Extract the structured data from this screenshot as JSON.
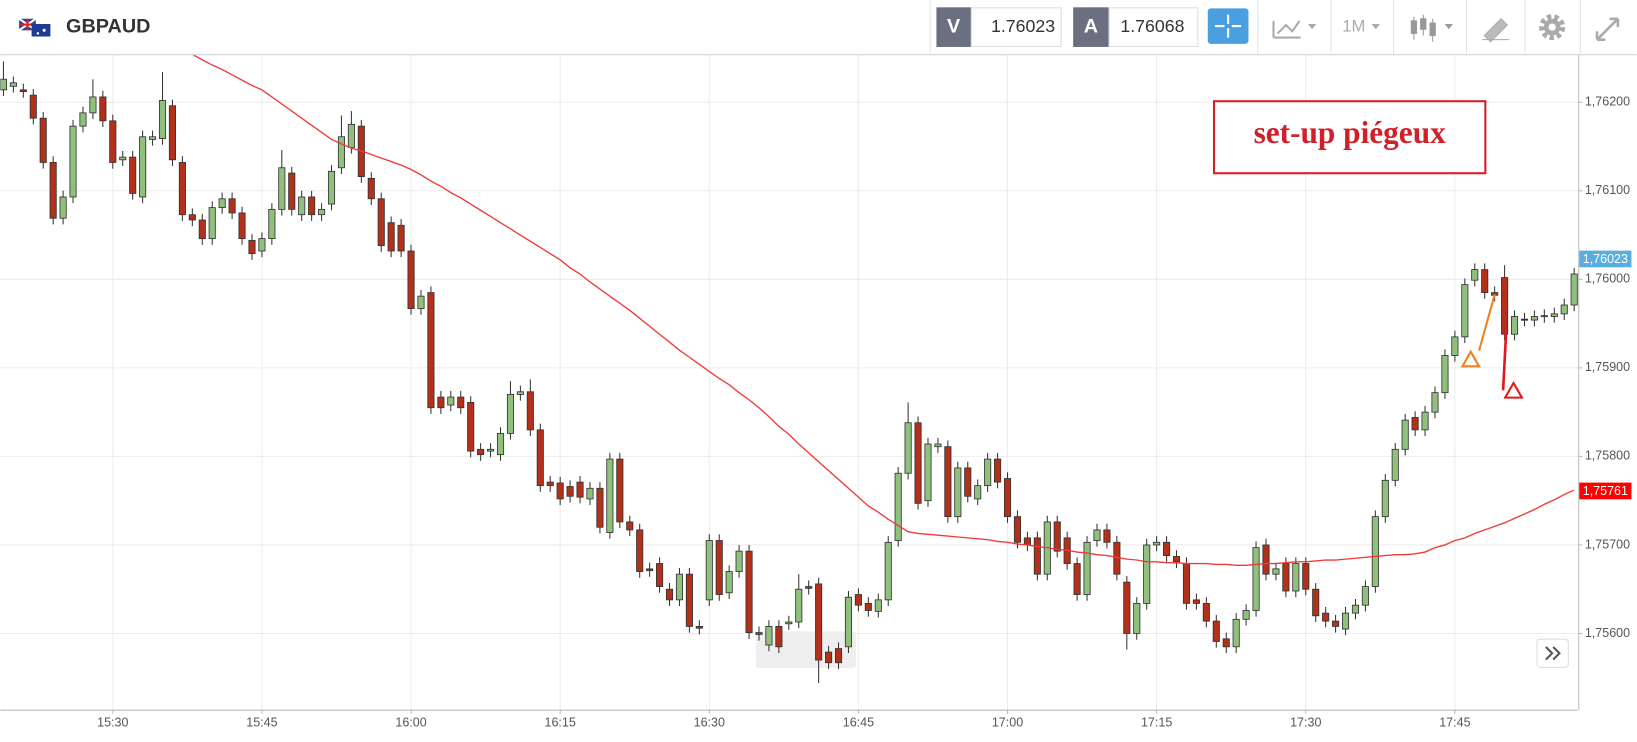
{
  "header": {
    "symbol": "GBPAUD",
    "bid_label": "V",
    "bid": 1.76023,
    "ask_label": "A",
    "ask": 1.76068,
    "timeframe": "1M"
  },
  "chart_data": {
    "type": "candlestick",
    "annotation": "set-up piégeux",
    "categories": [
      null,
      null,
      null,
      null,
      null,
      null,
      null,
      null,
      null,
      null,
      null,
      "15:30",
      null,
      null,
      null,
      null,
      null,
      null,
      null,
      null,
      null,
      null,
      null,
      null,
      null,
      null,
      "15:45",
      null,
      null,
      null,
      null,
      null,
      null,
      null,
      null,
      null,
      null,
      null,
      null,
      null,
      null,
      "16:00",
      null,
      null,
      null,
      null,
      null,
      null,
      null,
      null,
      null,
      null,
      null,
      null,
      null,
      null,
      "16:15",
      null,
      null,
      null,
      null,
      null,
      null,
      null,
      null,
      null,
      null,
      null,
      null,
      null,
      null,
      "16:30",
      null,
      null,
      null,
      null,
      null,
      null,
      null,
      null,
      null,
      null,
      null,
      null,
      null,
      null,
      "16:45",
      null,
      null,
      null,
      null,
      null,
      null,
      null,
      null,
      null,
      null,
      null,
      null,
      null,
      null,
      "17:00",
      null,
      null,
      null,
      null,
      null,
      null,
      null,
      null,
      null,
      null,
      null,
      null,
      null,
      null,
      "17:15",
      null,
      null,
      null,
      null,
      null,
      null,
      null,
      null,
      null,
      null,
      null,
      null,
      null,
      null,
      "17:30",
      null,
      null,
      null,
      null,
      null,
      null,
      null,
      null,
      null,
      null,
      null,
      null,
      null,
      null,
      "17:45",
      null,
      null,
      null,
      null,
      null,
      null,
      null,
      null,
      null,
      null,
      null,
      null
    ],
    "open": [
      1.76214,
      1.76218,
      1.76214,
      1.76208,
      1.76182,
      1.76132,
      1.76069,
      1.76093,
      1.76173,
      1.76188,
      1.76206,
      1.76179,
      1.76135,
      1.76138,
      1.76093,
      1.76158,
      1.76159,
      1.76196,
      1.76132,
      1.76073,
      1.76067,
      1.76046,
      1.76081,
      1.76091,
      1.76075,
      1.76044,
      1.76032,
      1.76046,
      1.76079,
      1.7612,
      1.76073,
      1.76093,
      1.76073,
      1.76085,
      1.76126,
      1.76149,
      1.76173,
      1.76114,
      1.76091,
      1.76064,
      1.76061,
      1.76032,
      1.75967,
      1.75985,
      1.75867,
      1.75858,
      1.75867,
      1.75861,
      1.75808,
      1.75806,
      1.75802,
      1.75826,
      1.7587,
      1.75873,
      1.7583,
      1.75771,
      1.7577,
      1.75766,
      1.75771,
      1.75752,
      1.75764,
      1.75714,
      1.75797,
      1.75726,
      1.75717,
      1.75673,
      1.75679,
      1.7565,
      1.75638,
      1.75667,
      1.75608,
      1.75638,
      1.75705,
      1.75646,
      1.7567,
      1.75693,
      1.75601,
      1.75587,
      1.75608,
      1.75611,
      1.75613,
      1.75653,
      1.75656,
      1.75579,
      1.75583,
      1.75585,
      1.75644,
      1.75634,
      1.75625,
      1.75638,
      1.75705,
      1.75781,
      1.75838,
      1.7575,
      1.75811,
      1.75811,
      1.75732,
      1.75787,
      1.75752,
      1.75767,
      1.75797,
      1.75775,
      1.75732,
      1.75708,
      1.75708,
      1.75667,
      1.75726,
      1.75708,
      1.75679,
      1.75644,
      1.75705,
      1.75717,
      1.75703,
      1.75658,
      1.756,
      1.75634,
      1.757,
      1.75703,
      1.75687,
      1.75679,
      1.75638,
      1.75634,
      1.75614,
      1.75594,
      1.75585,
      1.75616,
      1.75626,
      1.757,
      1.75667,
      1.75679,
      1.75648,
      1.75679,
      1.7565,
      1.75623,
      1.75614,
      1.75605,
      1.75623,
      1.75632,
      1.75653,
      1.75732,
      1.75773,
      1.75808,
      1.75844,
      1.7583,
      1.7585,
      1.75872,
      1.75914,
      1.75935,
      1.75999,
      1.76011,
      1.75985,
      1.76002,
      1.75938,
      1.75955,
      1.75954,
      1.75958,
      1.75958,
      1.75961,
      1.75971
    ],
    "high": [
      1.76246,
      1.76229,
      1.76221,
      1.76215,
      1.76189,
      1.76139,
      1.761,
      1.7618,
      1.76195,
      1.76226,
      1.76213,
      1.76186,
      1.76145,
      1.76145,
      1.76168,
      1.76168,
      1.76234,
      1.76203,
      1.76139,
      1.7608,
      1.76074,
      1.76088,
      1.76098,
      1.76098,
      1.76082,
      1.76051,
      1.76053,
      1.76086,
      1.76146,
      1.76127,
      1.761,
      1.761,
      1.76086,
      1.76129,
      1.76185,
      1.7619,
      1.7618,
      1.76121,
      1.76098,
      1.76071,
      1.76068,
      1.76039,
      1.75988,
      1.75992,
      1.75874,
      1.75874,
      1.75874,
      1.75868,
      1.75815,
      1.75815,
      1.75833,
      1.75885,
      1.7588,
      1.75887,
      1.75837,
      1.75778,
      1.75777,
      1.75773,
      1.75778,
      1.75771,
      1.75771,
      1.75804,
      1.75804,
      1.75733,
      1.75724,
      1.7568,
      1.75686,
      1.75657,
      1.75674,
      1.75674,
      1.75615,
      1.75712,
      1.75712,
      1.75677,
      1.757,
      1.757,
      1.75608,
      1.75615,
      1.75615,
      1.7562,
      1.75667,
      1.7566,
      1.75663,
      1.75586,
      1.7559,
      1.75648,
      1.75651,
      1.75641,
      1.75645,
      1.7571,
      1.75788,
      1.75861,
      1.75845,
      1.75821,
      1.75821,
      1.75818,
      1.75794,
      1.75794,
      1.75774,
      1.75804,
      1.75804,
      1.75782,
      1.75739,
      1.75715,
      1.75715,
      1.75733,
      1.75733,
      1.75715,
      1.75686,
      1.7571,
      1.75724,
      1.75724,
      1.7571,
      1.75665,
      1.75641,
      1.75707,
      1.7571,
      1.7571,
      1.75694,
      1.75686,
      1.75645,
      1.75641,
      1.75621,
      1.75601,
      1.75623,
      1.75633,
      1.75704,
      1.75707,
      1.7568,
      1.75686,
      1.75686,
      1.75686,
      1.75657,
      1.7563,
      1.75621,
      1.7563,
      1.75639,
      1.7566,
      1.75739,
      1.7578,
      1.75815,
      1.75848,
      1.75851,
      1.75857,
      1.75879,
      1.75921,
      1.75942,
      1.76001,
      1.76018,
      1.76018,
      1.75992,
      1.76016,
      1.75965,
      1.75962,
      1.75965,
      1.75966,
      1.75968,
      1.75978,
      1.76013
    ],
    "low": [
      1.76207,
      1.76211,
      1.76205,
      1.76175,
      1.76125,
      1.76062,
      1.76062,
      1.76086,
      1.76166,
      1.76181,
      1.76172,
      1.76125,
      1.76128,
      1.7609,
      1.76086,
      1.76151,
      1.76152,
      1.76128,
      1.76066,
      1.7606,
      1.76039,
      1.76039,
      1.76074,
      1.76068,
      1.76039,
      1.76022,
      1.76025,
      1.76039,
      1.76072,
      1.76072,
      1.76066,
      1.76066,
      1.76066,
      1.76078,
      1.76119,
      1.76142,
      1.76109,
      1.76084,
      1.76031,
      1.76025,
      1.76025,
      1.7596,
      1.7596,
      1.75848,
      1.75848,
      1.75851,
      1.75848,
      1.75799,
      1.75795,
      1.75799,
      1.75795,
      1.75819,
      1.75863,
      1.75823,
      1.7576,
      1.7576,
      1.75745,
      1.75748,
      1.75747,
      1.75745,
      1.75713,
      1.75707,
      1.75719,
      1.7571,
      1.75663,
      1.75664,
      1.75646,
      1.75631,
      1.75631,
      1.75601,
      1.75599,
      1.75631,
      1.75637,
      1.75639,
      1.75663,
      1.75594,
      1.75592,
      1.7558,
      1.75578,
      1.75604,
      1.75606,
      1.75644,
      1.75544,
      1.7556,
      1.7556,
      1.75578,
      1.75625,
      1.75619,
      1.75618,
      1.75631,
      1.75698,
      1.75774,
      1.7574,
      1.75743,
      1.75804,
      1.75725,
      1.75725,
      1.75748,
      1.75745,
      1.7576,
      1.75764,
      1.75725,
      1.75696,
      1.75693,
      1.7566,
      1.7566,
      1.75686,
      1.75672,
      1.75637,
      1.75637,
      1.75698,
      1.75696,
      1.7566,
      1.75582,
      1.75593,
      1.75627,
      1.75693,
      1.75681,
      1.75674,
      1.75627,
      1.75627,
      1.75607,
      1.75584,
      1.75578,
      1.75578,
      1.75609,
      1.75619,
      1.7566,
      1.7566,
      1.75641,
      1.75641,
      1.75643,
      1.75613,
      1.75607,
      1.75601,
      1.75598,
      1.75616,
      1.75625,
      1.75646,
      1.75725,
      1.75766,
      1.75801,
      1.75823,
      1.75823,
      1.75843,
      1.75865,
      1.75907,
      1.75928,
      1.75992,
      1.75978,
      1.75975,
      1.75931,
      1.75931,
      1.75947,
      1.75947,
      1.75951,
      1.75951,
      1.75954,
      1.75964
    ],
    "close": [
      1.76226,
      1.76222,
      1.76212,
      1.76182,
      1.76132,
      1.76069,
      1.76093,
      1.76173,
      1.76188,
      1.76206,
      1.76179,
      1.76132,
      1.76138,
      1.76097,
      1.76161,
      1.76161,
      1.76202,
      1.76135,
      1.76073,
      1.76067,
      1.76046,
      1.76081,
      1.76091,
      1.76075,
      1.76046,
      1.76029,
      1.76046,
      1.76079,
      1.76126,
      1.76079,
      1.76093,
      1.76073,
      1.76079,
      1.76122,
      1.76161,
      1.76175,
      1.76116,
      1.76091,
      1.76038,
      1.76032,
      1.76032,
      1.75967,
      1.75981,
      1.75855,
      1.75855,
      1.75867,
      1.75855,
      1.75806,
      1.75802,
      1.75808,
      1.75826,
      1.7587,
      1.75873,
      1.7583,
      1.75767,
      1.75767,
      1.75752,
      1.75755,
      1.75754,
      1.75764,
      1.7572,
      1.75797,
      1.75726,
      1.75717,
      1.7567,
      1.75671,
      1.75653,
      1.75638,
      1.75667,
      1.75608,
      1.75606,
      1.75705,
      1.75644,
      1.7567,
      1.75693,
      1.75601,
      1.75599,
      1.75608,
      1.75585,
      1.75613,
      1.7565,
      1.75651,
      1.7557,
      1.75567,
      1.75567,
      1.75641,
      1.75632,
      1.75626,
      1.75638,
      1.75703,
      1.75781,
      1.75838,
      1.75747,
      1.75814,
      1.75814,
      1.75732,
      1.75787,
      1.75755,
      1.75767,
      1.75797,
      1.75771,
      1.75732,
      1.75703,
      1.757,
      1.75667,
      1.75726,
      1.75693,
      1.75679,
      1.75644,
      1.75703,
      1.75717,
      1.75703,
      1.75667,
      1.756,
      1.75634,
      1.757,
      1.75703,
      1.75688,
      1.75681,
      1.75634,
      1.75634,
      1.75614,
      1.75591,
      1.75585,
      1.75616,
      1.75626,
      1.75697,
      1.75667,
      1.75673,
      1.75648,
      1.75679,
      1.7565,
      1.7562,
      1.75614,
      1.75608,
      1.75623,
      1.75632,
      1.75653,
      1.75732,
      1.75773,
      1.75808,
      1.75841,
      1.7583,
      1.7585,
      1.75872,
      1.75914,
      1.75935,
      1.75994,
      1.76011,
      1.75985,
      1.75982,
      1.75938,
      1.75958,
      1.75954,
      1.75958,
      1.75959,
      1.75961,
      1.75971,
      1.76006
    ],
    "up_color": "#8fc17d",
    "down_color": "#b3301a",
    "moving_average": {
      "color": "#f03a3a",
      "values": [
        null,
        null,
        null,
        null,
        null,
        null,
        null,
        null,
        null,
        null,
        null,
        null,
        null,
        null,
        null,
        null,
        null,
        null,
        null,
        1.76254,
        1.76248,
        1.76242,
        1.76237,
        1.76231,
        1.76225,
        1.76219,
        1.76214,
        1.76206,
        1.76198,
        1.7619,
        1.76182,
        1.76174,
        1.76166,
        1.76158,
        1.76153,
        1.76148,
        1.76145,
        1.76141,
        1.76137,
        1.76133,
        1.76129,
        1.76124,
        1.76118,
        1.76111,
        1.76105,
        1.76098,
        1.76092,
        1.76085,
        1.76078,
        1.76071,
        1.76064,
        1.76057,
        1.7605,
        1.76043,
        1.76036,
        1.76029,
        1.76022,
        1.76013,
        1.76006,
        1.75997,
        1.75989,
        1.75981,
        1.75973,
        1.75965,
        1.75956,
        1.75947,
        1.75938,
        1.75929,
        1.7592,
        1.75912,
        1.75904,
        1.75896,
        1.75888,
        1.75881,
        1.75872,
        1.75864,
        1.75855,
        1.75845,
        1.75834,
        1.75825,
        1.75814,
        1.75804,
        1.75794,
        1.75784,
        1.75774,
        1.75764,
        1.75754,
        1.75744,
        1.75737,
        1.75729,
        1.75722,
        1.75715,
        1.75713,
        1.75712,
        1.75711,
        1.7571,
        1.75709,
        1.75708,
        1.75707,
        1.75706,
        1.75704,
        1.75703,
        1.75701,
        1.757,
        1.75698,
        1.75697,
        1.75695,
        1.75694,
        1.75692,
        1.75691,
        1.75689,
        1.75688,
        1.75686,
        1.75684,
        1.75683,
        1.75681,
        1.75681,
        1.7568,
        1.7568,
        1.75679,
        1.75679,
        1.75679,
        1.75678,
        1.75678,
        1.75677,
        1.75677,
        1.75678,
        1.75679,
        1.75679,
        1.7568,
        1.75681,
        1.75681,
        1.75682,
        1.75683,
        1.75683,
        1.75684,
        1.75685,
        1.75686,
        1.75687,
        1.75688,
        1.75689,
        1.75689,
        1.7569,
        1.75692,
        1.75697,
        1.757,
        1.75705,
        1.75708,
        1.75713,
        1.75717,
        1.75721,
        1.75725,
        1.7573,
        1.75735,
        1.7574,
        1.75746,
        1.75751,
        1.75757,
        1.75762
      ]
    },
    "ylim": [
      1.75514,
      1.76253
    ],
    "yticks": [
      {
        "value": 1.756,
        "label": "1,75600"
      },
      {
        "value": 1.757,
        "label": "1,75700"
      },
      {
        "value": 1.758,
        "label": "1,75800"
      },
      {
        "value": 1.759,
        "label": "1,75900"
      },
      {
        "value": 1.76,
        "label": "1,76000"
      },
      {
        "value": 1.761,
        "label": "1,76100"
      },
      {
        "value": 1.762,
        "label": "1,76200"
      }
    ],
    "last_price": {
      "value": 1.76023,
      "label": "1,76023",
      "color": "#5aaedf"
    },
    "average_last": {
      "value": 1.75761,
      "label": "1,75761",
      "color": "#ff0000"
    },
    "grid": true
  }
}
